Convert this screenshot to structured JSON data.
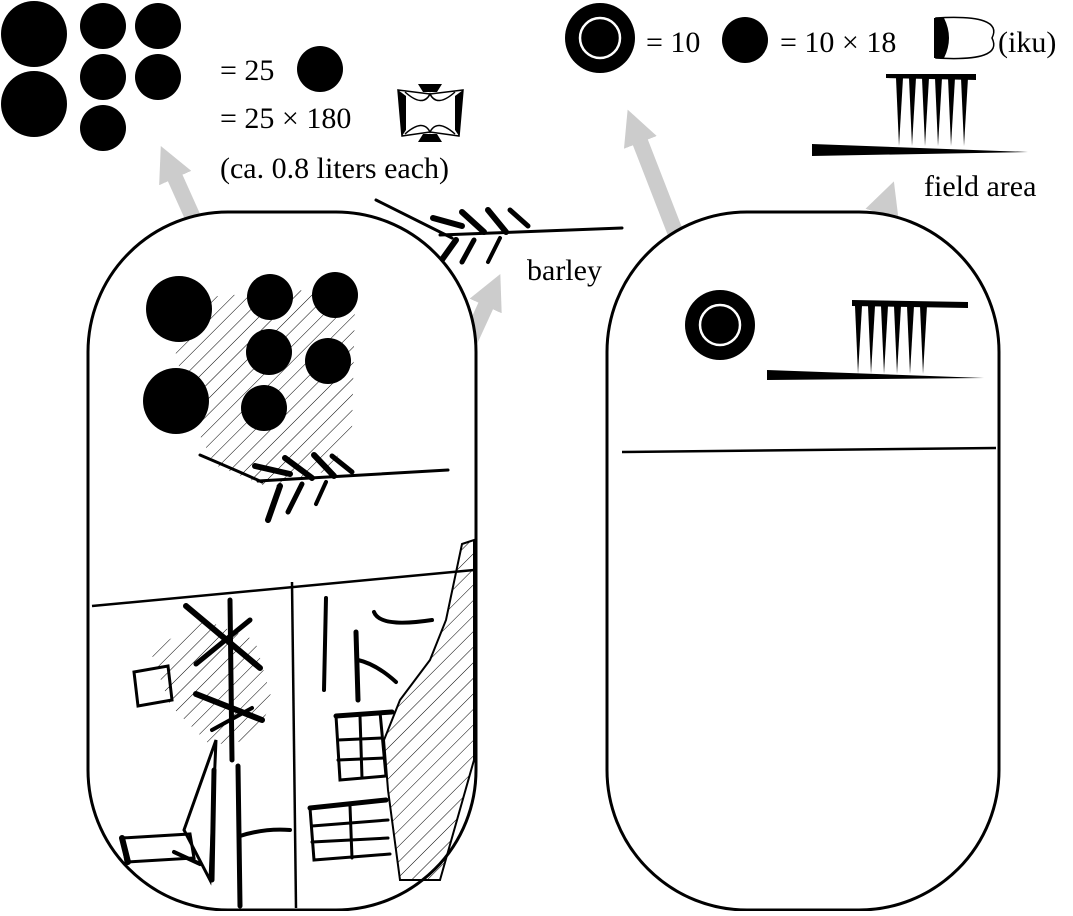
{
  "diagram": {
    "left_legend": {
      "line1": "= 25",
      "line2": "= 25 × 180",
      "line3": "(ca. 0.8 liters each)"
    },
    "right_legend": {
      "part1": "= 10",
      "part2": "= 10 × 18",
      "part3": "(iku)"
    },
    "labels": {
      "barley": "barley",
      "field_area": "field area"
    },
    "colors": {
      "ink": "#000000",
      "arrow": "#cccccc",
      "paper": "#ffffff"
    }
  }
}
